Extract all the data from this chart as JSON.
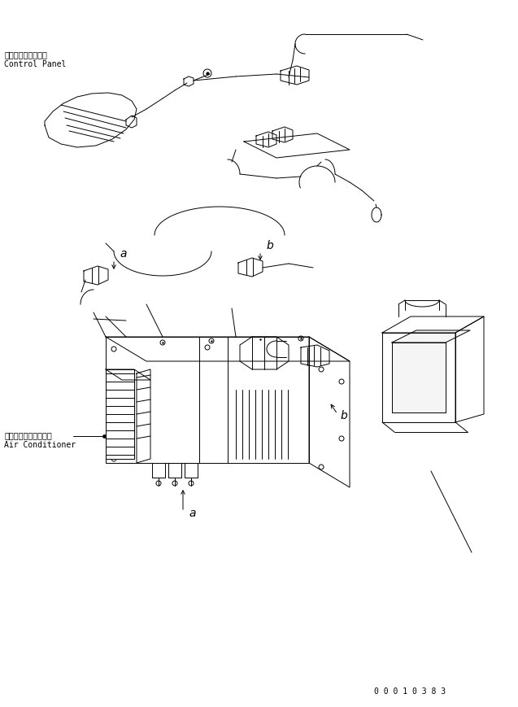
{
  "bg_color": "#ffffff",
  "line_color": "#000000",
  "text_color": "#000000",
  "label_control_panel_jp": "コントロールパネル",
  "label_control_panel_en": "Control Panel",
  "label_air_cond_jp": "エアーコンディショナ",
  "label_air_cond_en": "Air Conditioner",
  "part_number": "0 0 0 1 0 3 8 3",
  "font_size_labels": 7.0,
  "font_size_part": 7.0,
  "font_size_abc": 10
}
